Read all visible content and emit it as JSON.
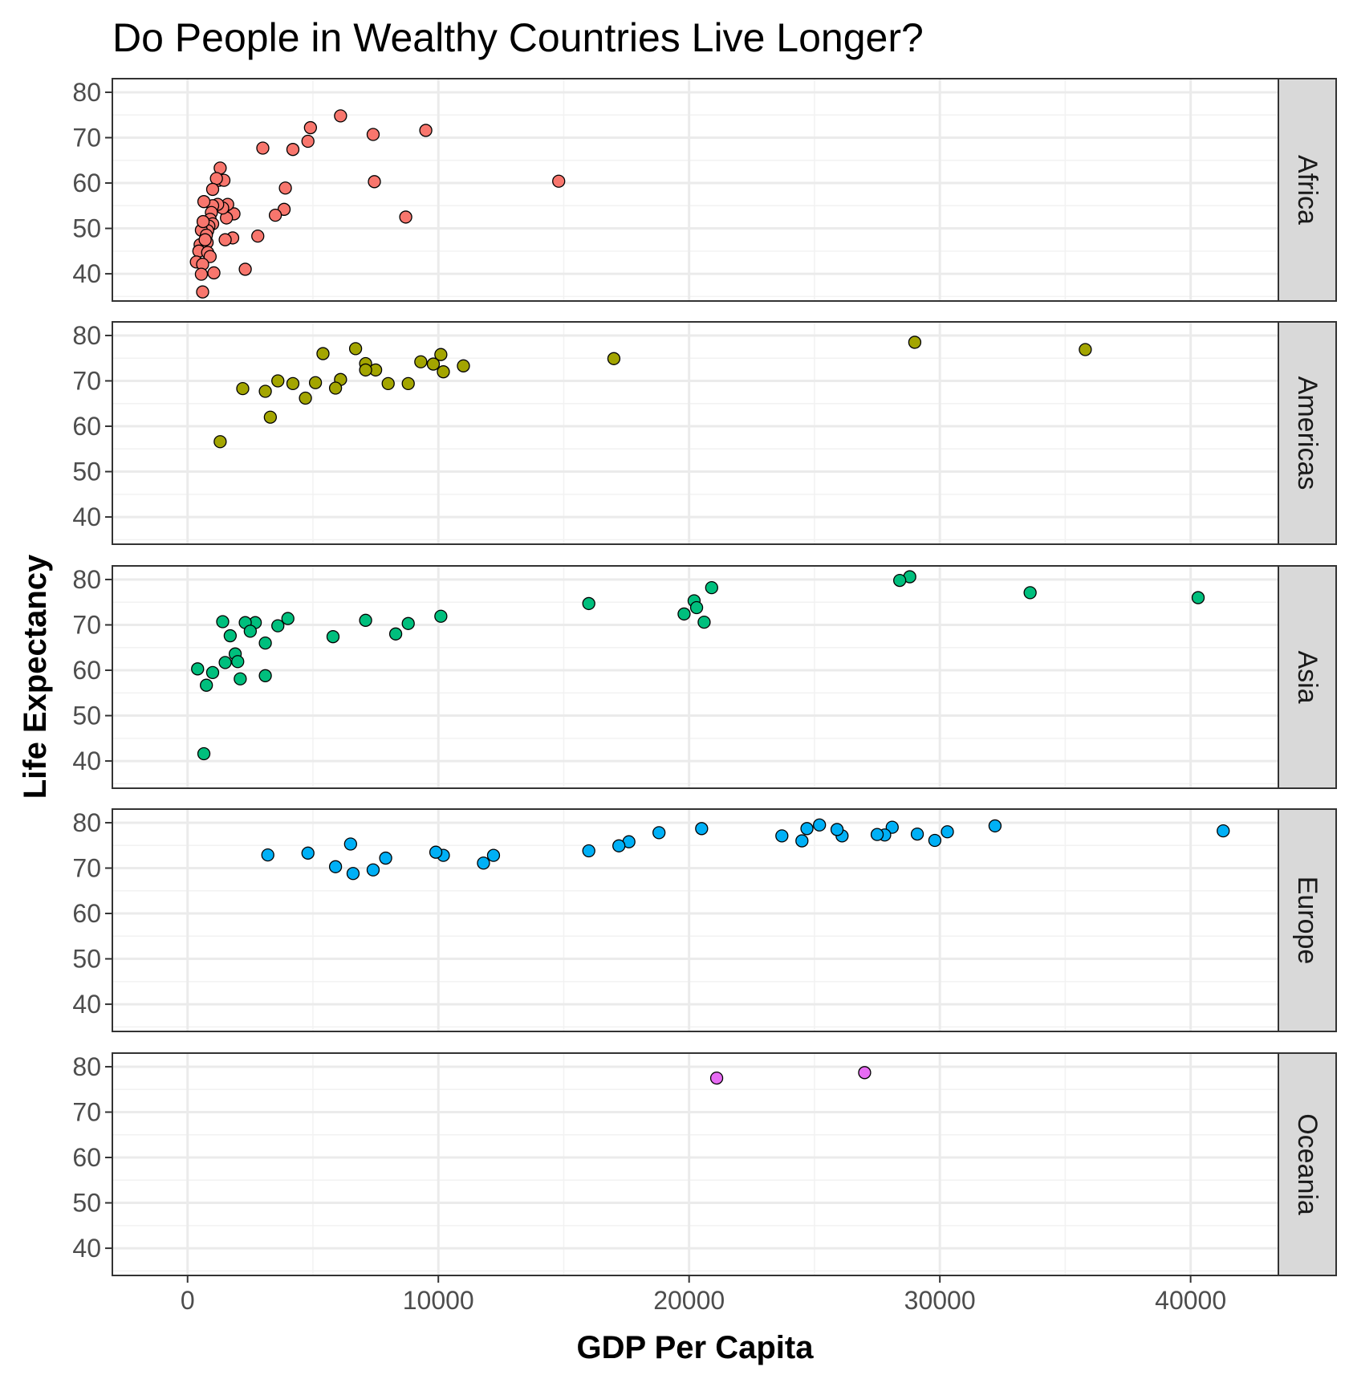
{
  "chart_data": {
    "type": "scatter",
    "title": "Do People in Wealthy Countries Live Longer?",
    "xlabel": "GDP Per Capita",
    "ylabel": "Life Expectancy",
    "xlim": [
      -3000,
      43500
    ],
    "ylim": [
      34,
      83
    ],
    "xticks": [
      0,
      10000,
      20000,
      30000,
      40000
    ],
    "xtick_labels": [
      "0",
      "10000",
      "20000",
      "30000",
      "40000"
    ],
    "yticks": [
      40,
      50,
      60,
      70,
      80
    ],
    "ytick_labels": [
      "40",
      "50",
      "60",
      "70",
      "80"
    ],
    "grid": true,
    "legend": "none",
    "facets": [
      {
        "name": "Africa",
        "color": "#F8766D",
        "points": [
          [
            14800,
            60.4
          ],
          [
            6100,
            74.8
          ],
          [
            9500,
            71.6
          ],
          [
            7400,
            70.7
          ],
          [
            4900,
            72.2
          ],
          [
            4800,
            69.2
          ],
          [
            3000,
            67.7
          ],
          [
            4200,
            67.4
          ],
          [
            7450,
            60.3
          ],
          [
            8700,
            52.5
          ],
          [
            3900,
            58.9
          ],
          [
            3850,
            54.2
          ],
          [
            3500,
            52.9
          ],
          [
            2800,
            48.3
          ],
          [
            2300,
            41.0
          ],
          [
            1850,
            53.2
          ],
          [
            1800,
            47.9
          ],
          [
            1550,
            52.3
          ],
          [
            1600,
            55.3
          ],
          [
            1500,
            47.5
          ],
          [
            1300,
            63.3
          ],
          [
            1250,
            60.6
          ],
          [
            1450,
            60.6
          ],
          [
            1150,
            61.0
          ],
          [
            1000,
            58.6
          ],
          [
            1400,
            54.5
          ],
          [
            1200,
            55.3
          ],
          [
            1000,
            55.0
          ],
          [
            950,
            53.5
          ],
          [
            900,
            52.0
          ],
          [
            1000,
            51.0
          ],
          [
            850,
            50.5
          ],
          [
            800,
            49.5
          ],
          [
            550,
            49.6
          ],
          [
            620,
            51.5
          ],
          [
            650,
            55.9
          ],
          [
            750,
            48.5
          ],
          [
            780,
            46.9
          ],
          [
            500,
            46.4
          ],
          [
            450,
            45.0
          ],
          [
            800,
            44.7
          ],
          [
            900,
            43.8
          ],
          [
            350,
            42.6
          ],
          [
            600,
            42.1
          ],
          [
            1050,
            40.2
          ],
          [
            550,
            39.9
          ],
          [
            600,
            36.0
          ],
          [
            700,
            47.5
          ]
        ]
      },
      {
        "name": "Americas",
        "color": "#A3A500",
        "points": [
          [
            29000,
            78.5
          ],
          [
            35800,
            76.9
          ],
          [
            17000,
            74.9
          ],
          [
            6700,
            77.1
          ],
          [
            5400,
            76.0
          ],
          [
            10100,
            75.8
          ],
          [
            9300,
            74.2
          ],
          [
            9800,
            73.7
          ],
          [
            7100,
            73.8
          ],
          [
            7500,
            72.4
          ],
          [
            7100,
            72.4
          ],
          [
            10200,
            72.0
          ],
          [
            11000,
            73.3
          ],
          [
            6100,
            70.3
          ],
          [
            5100,
            69.6
          ],
          [
            5900,
            68.4
          ],
          [
            4200,
            69.4
          ],
          [
            3600,
            70.0
          ],
          [
            4700,
            66.2
          ],
          [
            8000,
            69.4
          ],
          [
            8800,
            69.4
          ],
          [
            2200,
            68.3
          ],
          [
            3100,
            67.7
          ],
          [
            3300,
            62.0
          ],
          [
            1300,
            56.6
          ]
        ]
      },
      {
        "name": "Asia",
        "color": "#00BF7D",
        "points": [
          [
            28800,
            80.6
          ],
          [
            28400,
            79.8
          ],
          [
            33600,
            77.1
          ],
          [
            40300,
            76.0
          ],
          [
            20900,
            78.2
          ],
          [
            20200,
            75.3
          ],
          [
            20300,
            73.8
          ],
          [
            19800,
            72.4
          ],
          [
            20600,
            70.6
          ],
          [
            16000,
            74.7
          ],
          [
            10100,
            71.9
          ],
          [
            7100,
            71.0
          ],
          [
            8800,
            70.3
          ],
          [
            8300,
            68.0
          ],
          [
            5800,
            67.4
          ],
          [
            4000,
            71.4
          ],
          [
            3600,
            69.8
          ],
          [
            2700,
            70.5
          ],
          [
            2300,
            70.5
          ],
          [
            2500,
            68.6
          ],
          [
            3100,
            66.0
          ],
          [
            1400,
            70.7
          ],
          [
            1700,
            67.6
          ],
          [
            1900,
            63.6
          ],
          [
            2000,
            61.9
          ],
          [
            1500,
            61.7
          ],
          [
            2100,
            58.1
          ],
          [
            3100,
            58.8
          ],
          [
            1000,
            59.5
          ],
          [
            400,
            60.3
          ],
          [
            750,
            56.7
          ],
          [
            650,
            41.6
          ]
        ]
      },
      {
        "name": "Europe",
        "color": "#00B0F6",
        "points": [
          [
            41300,
            78.2
          ],
          [
            32200,
            79.3
          ],
          [
            30300,
            78.0
          ],
          [
            29800,
            76.1
          ],
          [
            29100,
            77.5
          ],
          [
            28100,
            79.0
          ],
          [
            27800,
            77.3
          ],
          [
            27500,
            77.4
          ],
          [
            26100,
            77.1
          ],
          [
            25900,
            78.5
          ],
          [
            25200,
            79.5
          ],
          [
            24700,
            78.7
          ],
          [
            24500,
            76.0
          ],
          [
            23700,
            77.1
          ],
          [
            20500,
            78.7
          ],
          [
            18800,
            77.8
          ],
          [
            17600,
            75.8
          ],
          [
            17200,
            74.9
          ],
          [
            16000,
            73.8
          ],
          [
            12200,
            72.8
          ],
          [
            11800,
            71.1
          ],
          [
            10200,
            72.8
          ],
          [
            9900,
            73.5
          ],
          [
            7900,
            72.2
          ],
          [
            7400,
            69.6
          ],
          [
            6500,
            75.3
          ],
          [
            6600,
            68.8
          ],
          [
            5900,
            70.3
          ],
          [
            4800,
            73.3
          ],
          [
            3200,
            72.9
          ]
        ]
      },
      {
        "name": "Oceania",
        "color": "#E76BF3",
        "points": [
          [
            27000,
            78.7
          ],
          [
            21100,
            77.5
          ]
        ]
      }
    ]
  }
}
